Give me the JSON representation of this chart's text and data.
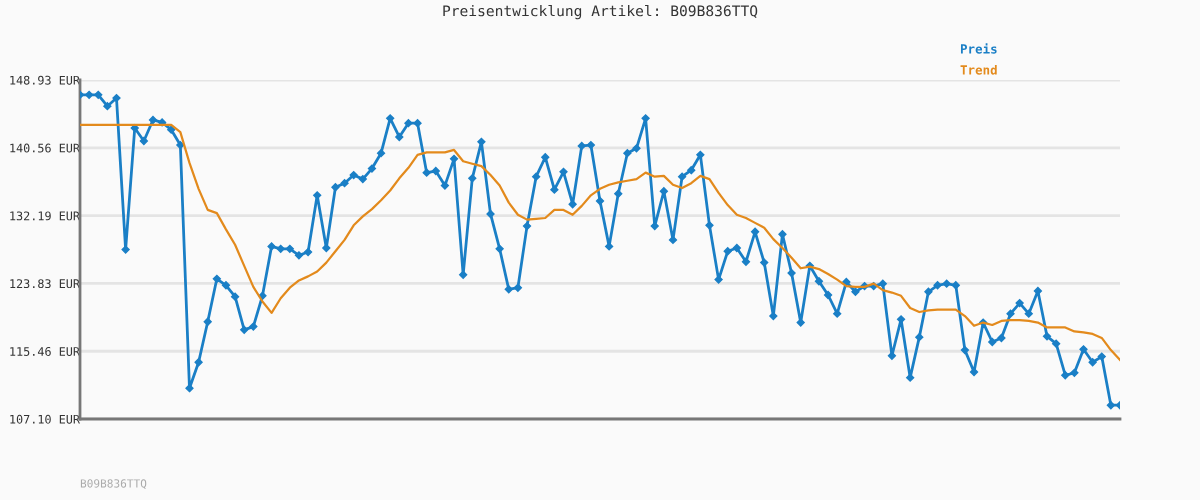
{
  "chart_data": {
    "type": "line",
    "title": "Preisentwicklung Artikel: B09B836TTQ",
    "categories": [
      null,
      null,
      null,
      null,
      null,
      null,
      null,
      null,
      null,
      null,
      null,
      null,
      null,
      null,
      null,
      null,
      null,
      null,
      null,
      null,
      null,
      null,
      null,
      null,
      null,
      null,
      null,
      null,
      null,
      null,
      null,
      null,
      null,
      null,
      null,
      null,
      null,
      null,
      null,
      null,
      null,
      null,
      null,
      null,
      null,
      null,
      null,
      null,
      null,
      null,
      null,
      null,
      null,
      null,
      null,
      null,
      null,
      null,
      null,
      null,
      null,
      null,
      null,
      null,
      null,
      null,
      null,
      null,
      null,
      null,
      null,
      null,
      null,
      null,
      null,
      null,
      null,
      null,
      null,
      null,
      null,
      null,
      null,
      null,
      null,
      null,
      null,
      null,
      null,
      null,
      null,
      null,
      null,
      null,
      null,
      null,
      null,
      null,
      null,
      null,
      null,
      null,
      null,
      null,
      null,
      null,
      null,
      null,
      null,
      null,
      null,
      null,
      null,
      null,
      null
    ],
    "series": [
      {
        "name": "Preis",
        "color": "#1a7fc6",
        "marker": "diamond",
        "values": [
          147.1,
          147.1,
          147.1,
          145.7,
          146.7,
          128.0,
          143.0,
          141.4,
          144.0,
          143.7,
          142.8,
          140.9,
          110.9,
          114.1,
          119.1,
          124.4,
          123.6,
          122.2,
          118.1,
          118.5,
          122.3,
          128.4,
          128.1,
          128.1,
          127.3,
          127.7,
          134.7,
          128.2,
          135.7,
          136.2,
          137.2,
          136.7,
          138.0,
          139.9,
          144.2,
          141.9,
          143.6,
          143.6,
          137.5,
          137.7,
          135.9,
          139.2,
          124.9,
          136.8,
          141.3,
          132.4,
          128.1,
          123.1,
          123.3,
          130.9,
          137.0,
          139.4,
          135.4,
          137.6,
          133.6,
          140.8,
          140.9,
          134.0,
          128.4,
          134.9,
          139.9,
          140.5,
          144.2,
          130.9,
          135.2,
          129.2,
          137.0,
          137.8,
          139.7,
          131.0,
          124.3,
          127.8,
          128.2,
          126.5,
          130.2,
          126.4,
          119.8,
          129.9,
          125.1,
          119.0,
          126.0,
          124.1,
          122.4,
          120.1,
          124.0,
          122.8,
          123.5,
          123.5,
          123.8,
          114.9,
          119.4,
          112.2,
          117.2,
          122.8,
          123.6,
          123.8,
          123.6,
          115.6,
          112.9,
          119.0,
          116.6,
          117.1,
          120.1,
          121.4,
          120.1,
          122.9,
          117.3,
          116.4,
          112.5,
          112.8,
          115.7,
          114.1,
          114.8,
          108.8,
          108.8
        ]
      },
      {
        "name": "Trend",
        "color": "#e38a1c",
        "marker": "none",
        "values": [
          143.4,
          143.4,
          143.4,
          143.4,
          143.4,
          143.4,
          143.4,
          143.4,
          143.4,
          143.4,
          143.4,
          142.5,
          138.7,
          135.5,
          132.9,
          132.5,
          130.5,
          128.6,
          126.0,
          123.4,
          121.6,
          120.2,
          122.0,
          123.3,
          124.2,
          124.7,
          125.3,
          126.4,
          127.8,
          129.2,
          131.0,
          132.1,
          133.0,
          134.1,
          135.3,
          136.8,
          138.1,
          139.7,
          140.0,
          140.0,
          140.0,
          140.3,
          138.9,
          138.6,
          138.3,
          137.2,
          135.9,
          133.8,
          132.3,
          131.7,
          131.8,
          131.9,
          132.9,
          132.9,
          132.3,
          133.4,
          134.7,
          135.5,
          136.0,
          136.3,
          136.5,
          136.7,
          137.5,
          137.0,
          137.1,
          136.0,
          135.6,
          136.2,
          137.1,
          136.7,
          135.0,
          133.5,
          132.3,
          131.9,
          131.3,
          130.7,
          129.3,
          128.2,
          127.0,
          125.7,
          125.9,
          125.6,
          125.0,
          124.3,
          123.5,
          123.4,
          123.4,
          123.8,
          123.0,
          122.7,
          122.3,
          120.8,
          120.3,
          120.5,
          120.6,
          120.6,
          120.6,
          119.8,
          118.6,
          119.0,
          118.7,
          119.2,
          119.3,
          119.3,
          119.2,
          119.0,
          118.4,
          118.4,
          118.4,
          117.9,
          117.8,
          117.6,
          117.1,
          115.6,
          114.4
        ]
      }
    ],
    "ylim": [
      107.1,
      148.93
    ],
    "yticks": [
      {
        "value": 107.1,
        "label": "107.10 EUR"
      },
      {
        "value": 115.46,
        "label": "115.46 EUR"
      },
      {
        "value": 123.83,
        "label": "123.83 EUR"
      },
      {
        "value": 132.19,
        "label": "132.19 EUR"
      },
      {
        "value": 140.56,
        "label": "140.56 EUR"
      },
      {
        "value": 148.93,
        "label": "148.93 EUR"
      }
    ],
    "grid": "y",
    "legend": "top right",
    "annotations": [
      "B09B836TTQ"
    ]
  }
}
